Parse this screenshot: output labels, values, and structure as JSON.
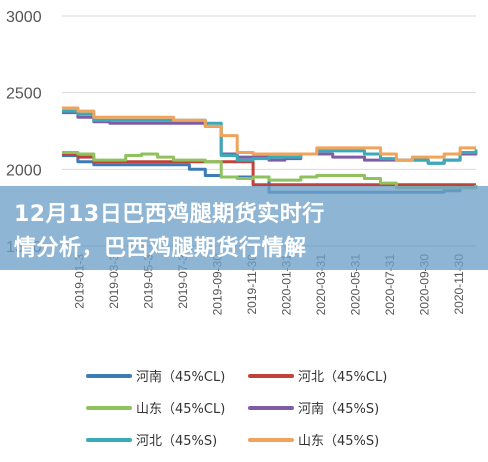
{
  "title": "12月13日巴西鸡腿期货实时行\n情分析，巴西鸡腿期货行情解",
  "chart_data": {
    "type": "line",
    "ylim": [
      1500,
      3000
    ],
    "yticks": [
      1500,
      2000,
      2500,
      3000
    ],
    "x_labels": [
      "2019-01-3",
      "2019-03-3",
      "2019-05-3",
      "2019-07-3",
      "2019-09-30",
      "2019-11-30",
      "2020-01-31",
      "2020-03-31",
      "2020-05-31",
      "2020-07-31",
      "2020-09-30",
      "2020-11-30"
    ],
    "legend_placement": "bottom",
    "series": [
      {
        "name": "河南（45%CL)",
        "color": "#3b7bb8",
        "values": [
          2090,
          2050,
          2030,
          2030,
          2030,
          2030,
          2030,
          2030,
          2000,
          1960,
          1950,
          1950,
          1950,
          1850,
          1850,
          1850,
          1850,
          1850,
          1850,
          1850,
          1850,
          1850,
          1850,
          1850,
          1860,
          1880,
          1880
        ]
      },
      {
        "name": "河北（45%CL)",
        "color": "#c0423c",
        "values": [
          2100,
          2080,
          2050,
          2050,
          2050,
          2050,
          2050,
          2050,
          2050,
          2050,
          2050,
          2050,
          1900,
          1900,
          1900,
          1900,
          1900,
          1900,
          1900,
          1900,
          1900,
          1900,
          1900,
          1900,
          1900,
          1900,
          1900
        ]
      },
      {
        "name": "山东（45%CL)",
        "color": "#8fc25c",
        "values": [
          2110,
          2100,
          2060,
          2060,
          2090,
          2100,
          2080,
          2060,
          2060,
          2050,
          1950,
          1940,
          1950,
          1930,
          1930,
          1950,
          1960,
          1960,
          1960,
          1940,
          1910,
          1880,
          1880,
          1880,
          1880,
          1880,
          1900
        ]
      },
      {
        "name": "河南（45%S)",
        "color": "#7f5da6",
        "values": [
          2370,
          2340,
          2310,
          2300,
          2300,
          2300,
          2300,
          2300,
          2300,
          2280,
          2100,
          2080,
          2080,
          2060,
          2070,
          2100,
          2100,
          2080,
          2080,
          2060,
          2060,
          2060,
          2060,
          2040,
          2060,
          2100,
          2120
        ]
      },
      {
        "name": "河北（45%S)",
        "color": "#3aaab8",
        "values": [
          2380,
          2360,
          2320,
          2320,
          2320,
          2320,
          2320,
          2320,
          2320,
          2300,
          2090,
          2060,
          2070,
          2080,
          2080,
          2100,
          2120,
          2120,
          2120,
          2100,
          2070,
          2060,
          2060,
          2040,
          2060,
          2110,
          2130
        ]
      },
      {
        "name": "山东（45%S)",
        "color": "#f0a35a",
        "values": [
          2400,
          2380,
          2340,
          2340,
          2340,
          2340,
          2340,
          2320,
          2320,
          2280,
          2220,
          2110,
          2100,
          2100,
          2100,
          2100,
          2140,
          2140,
          2140,
          2140,
          2100,
          2060,
          2080,
          2080,
          2100,
          2140,
          2140
        ]
      }
    ]
  }
}
